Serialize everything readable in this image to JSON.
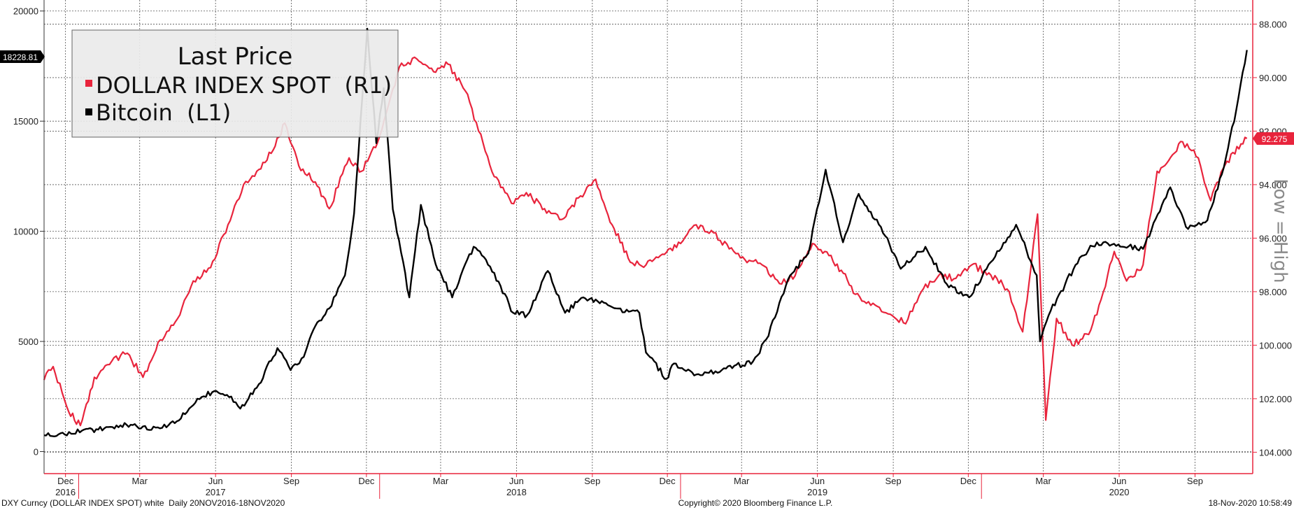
{
  "chart_data": {
    "type": "line",
    "legend": {
      "title": "Last Price",
      "placement": "top-left",
      "entries": [
        "DOLLAR INDEX SPOT  (R1)",
        "Bitcoin  (L1)"
      ]
    },
    "left_axis": {
      "range": [
        -1000,
        20500
      ],
      "ticks": [
        "0",
        "5000",
        "10000",
        "15000",
        "20000"
      ],
      "last_value_label": "18228.81"
    },
    "right_axis": {
      "inverted": true,
      "range": [
        104.8,
        87.1
      ],
      "ticks": [
        "88.000",
        "90.000",
        "92.000",
        "94.000",
        "96.000",
        "98.000",
        "100.000",
        "102.000",
        "104.000"
      ],
      "last_value_label": "92.275",
      "side_label": "Low = High"
    },
    "x_axis": {
      "months": [
        "Dec",
        "Mar",
        "Jun",
        "Sep",
        "Dec",
        "Mar",
        "Jun",
        "Sep",
        "Dec",
        "Mar",
        "Jun",
        "Sep",
        "Dec",
        "Mar",
        "Jun",
        "Sep"
      ],
      "years": [
        "2016",
        "2017",
        "2018",
        "2019",
        "2020"
      ]
    },
    "grid": true,
    "series": [
      {
        "name": "DOLLAR INDEX SPOT",
        "axis": "right",
        "color": "#e8243c",
        "x": [
          "2016-11-20",
          "2016-12-01",
          "2016-12-20",
          "2017-01-03",
          "2017-01-20",
          "2017-02-10",
          "2017-03-01",
          "2017-03-20",
          "2017-04-10",
          "2017-05-01",
          "2017-05-20",
          "2017-06-10",
          "2017-07-01",
          "2017-07-20",
          "2017-08-05",
          "2017-08-25",
          "2017-09-08",
          "2017-09-25",
          "2017-10-15",
          "2017-11-01",
          "2017-11-25",
          "2017-12-10",
          "2018-01-01",
          "2018-01-25",
          "2018-02-15",
          "2018-03-10",
          "2018-03-25",
          "2018-04-15",
          "2018-05-01",
          "2018-05-20",
          "2018-06-10",
          "2018-06-28",
          "2018-07-20",
          "2018-08-10",
          "2018-08-30",
          "2018-09-20",
          "2018-10-10",
          "2018-11-01",
          "2018-11-20",
          "2018-12-10",
          "2019-01-01",
          "2019-01-20",
          "2019-02-10",
          "2019-03-01",
          "2019-03-20",
          "2019-04-10",
          "2019-05-01",
          "2019-05-20",
          "2019-06-10",
          "2019-06-25",
          "2019-07-15",
          "2019-08-01",
          "2019-08-25",
          "2019-09-15",
          "2019-10-01",
          "2019-10-20",
          "2019-11-10",
          "2019-12-01",
          "2019-12-20",
          "2020-01-10",
          "2020-02-01",
          "2020-02-20",
          "2020-03-09",
          "2020-03-19",
          "2020-04-01",
          "2020-04-20",
          "2020-05-10",
          "2020-05-25",
          "2020-06-10",
          "2020-06-25",
          "2020-07-15",
          "2020-08-01",
          "2020-08-15",
          "2020-09-01",
          "2020-09-20",
          "2020-10-05",
          "2020-10-20",
          "2020-11-01",
          "2020-11-18"
        ],
        "values": [
          101.3,
          100.8,
          102.5,
          103.0,
          101.2,
          100.6,
          100.3,
          101.2,
          99.8,
          99.0,
          97.6,
          97.1,
          95.5,
          94.0,
          93.5,
          92.7,
          91.7,
          93.3,
          93.9,
          94.9,
          93.0,
          93.5,
          92.2,
          89.6,
          89.3,
          89.8,
          89.5,
          90.5,
          92.0,
          93.7,
          94.7,
          94.3,
          94.9,
          95.3,
          94.5,
          93.8,
          95.5,
          96.9,
          97.0,
          96.6,
          96.2,
          95.5,
          95.8,
          96.4,
          96.8,
          97.0,
          97.7,
          97.4,
          96.2,
          96.5,
          97.2,
          98.1,
          98.5,
          98.9,
          99.2,
          98.0,
          97.4,
          97.5,
          97.0,
          97.3,
          97.9,
          99.5,
          95.1,
          102.8,
          99.0,
          100.0,
          99.6,
          98.3,
          96.5,
          97.6,
          97.0,
          93.5,
          93.1,
          92.4,
          93.0,
          94.6,
          93.4,
          92.8,
          92.275
        ]
      },
      {
        "name": "Bitcoin",
        "axis": "left",
        "color": "#000000",
        "x": [
          "2016-11-20",
          "2016-12-15",
          "2017-01-05",
          "2017-02-01",
          "2017-03-10",
          "2017-03-25",
          "2017-04-20",
          "2017-05-10",
          "2017-05-25",
          "2017-06-12",
          "2017-07-05",
          "2017-07-16",
          "2017-08-05",
          "2017-08-30",
          "2017-09-15",
          "2017-10-01",
          "2017-10-15",
          "2017-11-01",
          "2017-11-20",
          "2017-12-01",
          "2017-12-17",
          "2017-12-28",
          "2018-01-06",
          "2018-01-17",
          "2018-02-06",
          "2018-02-20",
          "2018-03-10",
          "2018-03-30",
          "2018-04-25",
          "2018-05-15",
          "2018-06-12",
          "2018-06-29",
          "2018-07-24",
          "2018-08-14",
          "2018-09-05",
          "2018-10-15",
          "2018-11-12",
          "2018-11-20",
          "2018-12-15",
          "2018-12-24",
          "2019-01-20",
          "2019-02-20",
          "2019-03-30",
          "2019-04-15",
          "2019-05-14",
          "2019-06-05",
          "2019-06-26",
          "2019-07-17",
          "2019-08-05",
          "2019-09-01",
          "2019-09-25",
          "2019-10-25",
          "2019-11-20",
          "2019-12-17",
          "2020-01-15",
          "2020-02-12",
          "2020-03-08",
          "2020-03-12",
          "2020-03-25",
          "2020-04-29",
          "2020-05-20",
          "2020-06-15",
          "2020-07-15",
          "2020-08-17",
          "2020-09-05",
          "2020-10-01",
          "2020-10-21",
          "2020-11-05",
          "2020-11-18"
        ],
        "values": [
          740,
          780,
          950,
          1050,
          1250,
          1000,
          1200,
          1700,
          2400,
          2700,
          2500,
          1950,
          2900,
          4700,
          3700,
          4300,
          5700,
          6500,
          8000,
          10800,
          19200,
          14000,
          16500,
          11000,
          7000,
          11200,
          8500,
          7000,
          9300,
          8400,
          6300,
          6200,
          8200,
          6300,
          7000,
          6500,
          6300,
          4500,
          3300,
          4000,
          3500,
          3700,
          4100,
          5100,
          8000,
          9000,
          12800,
          9500,
          11700,
          10200,
          8300,
          9300,
          7600,
          7000,
          8700,
          10300,
          8000,
          5000,
          6400,
          8800,
          9500,
          9400,
          9200,
          12000,
          10200,
          10500,
          12900,
          15500,
          18228.81
        ]
      }
    ]
  },
  "footer": {
    "left": "DXY Curncy (DOLLAR INDEX SPOT) white  Daily 20NOV2016-18NOV2020",
    "center": "Copyright© 2020 Bloomberg Finance L.P.",
    "right": "18-Nov-2020 10:58:49"
  }
}
